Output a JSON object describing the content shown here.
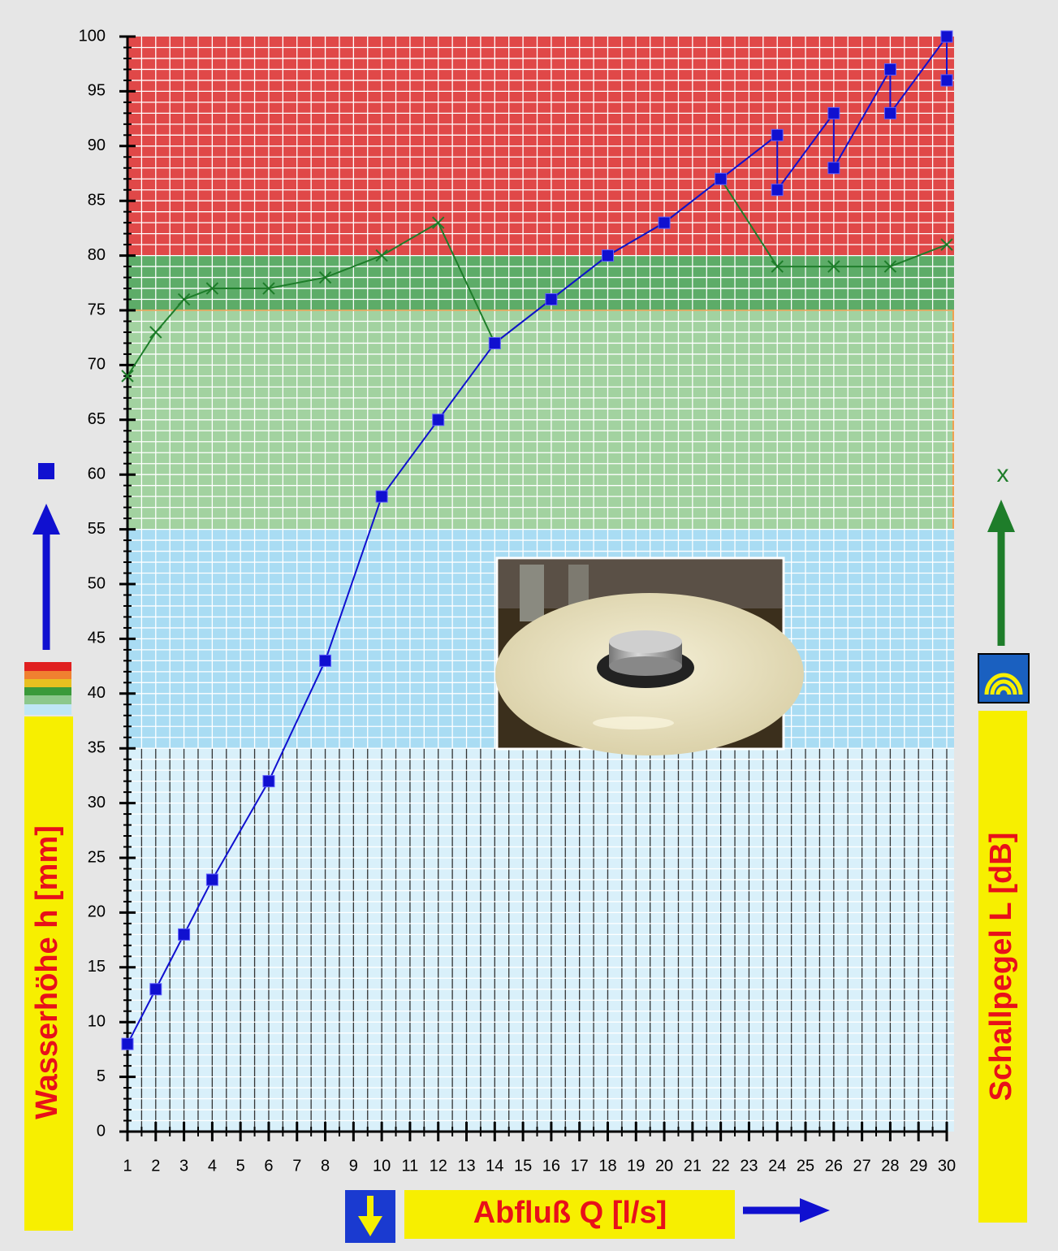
{
  "chart_data": {
    "type": "line",
    "y_label": "Wasserhöhe h [mm]",
    "y2_label": "Schallpegel L [dB]",
    "x_label": "Abfluß Q [l/s]",
    "y2_marker_label": "x",
    "xlim": [
      1,
      30
    ],
    "xticks": [
      1,
      2,
      3,
      4,
      5,
      6,
      7,
      8,
      9,
      10,
      11,
      12,
      13,
      14,
      15,
      16,
      17,
      18,
      19,
      20,
      21,
      22,
      23,
      24,
      25,
      26,
      27,
      28,
      29,
      30
    ],
    "ylim": [
      0,
      100
    ],
    "yticks": [
      0,
      5,
      10,
      15,
      20,
      25,
      30,
      35,
      40,
      45,
      50,
      55,
      60,
      65,
      70,
      75,
      80,
      85,
      90,
      95,
      100
    ],
    "minor_grid": {
      "x": 0.5,
      "y": 1
    },
    "bands": [
      {
        "from": 80,
        "to": 100,
        "color": "#e04848",
        "vgrid": "#ffffff"
      },
      {
        "from": 75,
        "to": 80,
        "color": "#5dac68",
        "vgrid": "#ffffff"
      },
      {
        "from": 55,
        "to": 75,
        "color": "#a2d2a0",
        "vgrid": "#ffffff",
        "border": "#f0a050"
      },
      {
        "from": 35,
        "to": 55,
        "color": "#a9dcf3",
        "vgrid": "#ffffff"
      },
      {
        "from": 0,
        "to": 35,
        "color": "#d9f0fa",
        "vgrid": "#333333"
      }
    ],
    "series": [
      {
        "color": "#1010d0",
        "marker": "square",
        "x": [
          1,
          2,
          3,
          4,
          6,
          8,
          10,
          12,
          14,
          16,
          18,
          20,
          22,
          24,
          24,
          26,
          26,
          28,
          28,
          30,
          30
        ],
        "values": [
          8,
          13,
          18,
          23,
          32,
          43,
          58,
          65,
          72,
          76,
          80,
          83,
          87,
          91,
          86,
          93,
          88,
          97,
          93,
          100,
          96
        ]
      },
      {
        "color": "#1e7d2a",
        "marker": "x",
        "x": [
          1,
          2,
          3,
          4,
          6,
          8,
          10,
          12,
          14,
          16,
          18,
          20,
          22,
          24,
          26,
          28,
          30
        ],
        "values": [
          69,
          73,
          76,
          77,
          77,
          78,
          80,
          83,
          72,
          76,
          80,
          83,
          87,
          79,
          79,
          79,
          81
        ]
      }
    ]
  }
}
